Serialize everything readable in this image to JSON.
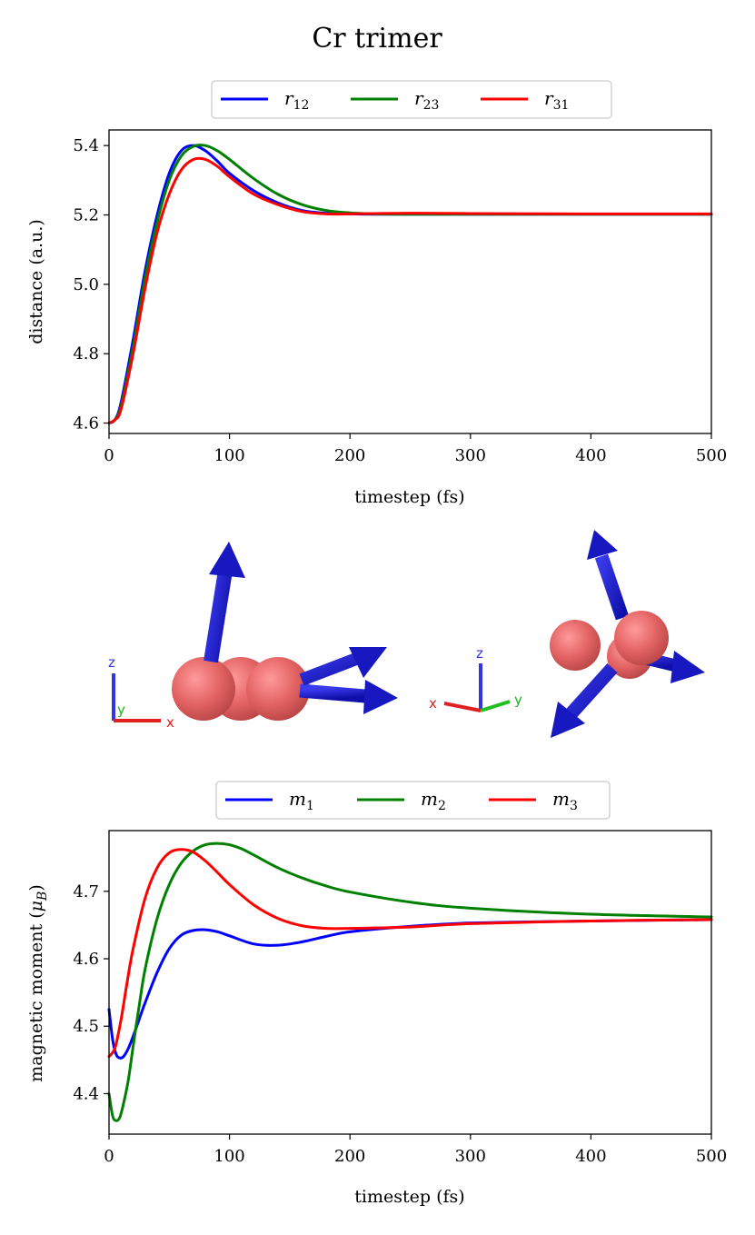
{
  "title": "Cr trimer",
  "colors": {
    "blue": "#0000ff",
    "green": "#008000",
    "red": "#ff0000",
    "atom": "#e46464",
    "arrow": "#1515c8"
  },
  "structure_views": {
    "left_view_axes": [
      "z",
      "y",
      "x"
    ],
    "right_view_axes": [
      "z",
      "x",
      "y"
    ]
  },
  "chart_data": [
    {
      "type": "line",
      "title": "",
      "xlabel": "timestep (fs)",
      "ylabel": "distance (a.u.)",
      "xlim": [
        0,
        500
      ],
      "ylim": [
        4.57,
        5.445
      ],
      "xticks": [
        "0",
        "100",
        "200",
        "300",
        "400",
        "500"
      ],
      "yticks": [
        "4.6",
        "4.8",
        "5.0",
        "5.2",
        "5.4"
      ],
      "legend": "top-center",
      "series": [
        {
          "name": "r",
          "sub": "12",
          "color": "#0000ff",
          "x": [
            0,
            5,
            10,
            20,
            30,
            40,
            50,
            60,
            70,
            80,
            90,
            100,
            120,
            140,
            160,
            180,
            200,
            220,
            250,
            300,
            400,
            500
          ],
          "y": [
            4.6,
            4.61,
            4.66,
            4.84,
            5.04,
            5.2,
            5.32,
            5.385,
            5.4,
            5.385,
            5.355,
            5.32,
            5.27,
            5.235,
            5.213,
            5.205,
            5.203,
            5.202,
            5.202,
            5.202,
            5.202,
            5.202
          ]
        },
        {
          "name": "r",
          "sub": "23",
          "color": "#008000",
          "x": [
            0,
            5,
            10,
            20,
            30,
            40,
            50,
            60,
            70,
            80,
            90,
            100,
            120,
            140,
            160,
            180,
            200,
            220,
            250,
            300,
            400,
            500
          ],
          "y": [
            4.6,
            4.61,
            4.65,
            4.82,
            5.02,
            5.18,
            5.3,
            5.37,
            5.398,
            5.4,
            5.385,
            5.36,
            5.305,
            5.26,
            5.23,
            5.213,
            5.206,
            5.203,
            5.202,
            5.202,
            5.202,
            5.202
          ]
        },
        {
          "name": "r",
          "sub": "31",
          "color": "#ff0000",
          "x": [
            0,
            5,
            10,
            20,
            30,
            40,
            50,
            60,
            70,
            80,
            90,
            100,
            120,
            140,
            160,
            180,
            200,
            220,
            250,
            300,
            400,
            500
          ],
          "y": [
            4.6,
            4.61,
            4.64,
            4.8,
            4.99,
            5.15,
            5.26,
            5.33,
            5.36,
            5.36,
            5.34,
            5.31,
            5.26,
            5.23,
            5.21,
            5.203,
            5.203,
            5.204,
            5.205,
            5.204,
            5.203,
            5.203
          ]
        }
      ]
    },
    {
      "type": "line",
      "title": "",
      "xlabel": "timestep (fs)",
      "ylabel": "magnetic moment",
      "ylabel_unit": "B",
      "xlim": [
        0,
        500
      ],
      "ylim": [
        4.34,
        4.79
      ],
      "xticks": [
        "0",
        "100",
        "200",
        "300",
        "400",
        "500"
      ],
      "yticks": [
        "4.4",
        "4.5",
        "4.6",
        "4.7"
      ],
      "legend": "top-center",
      "series": [
        {
          "name": "m",
          "sub": "1",
          "color": "#0000ff",
          "x": [
            0,
            3,
            6,
            9,
            12,
            16,
            20,
            25,
            30,
            40,
            50,
            60,
            70,
            80,
            90,
            100,
            120,
            140,
            160,
            180,
            200,
            250,
            300,
            400,
            500
          ],
          "y": [
            4.525,
            4.48,
            4.458,
            4.453,
            4.455,
            4.467,
            4.485,
            4.51,
            4.535,
            4.58,
            4.615,
            4.635,
            4.642,
            4.643,
            4.64,
            4.634,
            4.622,
            4.62,
            4.625,
            4.633,
            4.64,
            4.648,
            4.653,
            4.656,
            4.658
          ]
        },
        {
          "name": "m",
          "sub": "2",
          "color": "#008000",
          "x": [
            0,
            3,
            6,
            9,
            12,
            16,
            20,
            25,
            30,
            40,
            50,
            60,
            70,
            80,
            90,
            100,
            110,
            120,
            140,
            160,
            180,
            200,
            250,
            300,
            400,
            500
          ],
          "y": [
            4.4,
            4.367,
            4.36,
            4.365,
            4.385,
            4.42,
            4.47,
            4.53,
            4.585,
            4.66,
            4.71,
            4.742,
            4.76,
            4.769,
            4.771,
            4.769,
            4.763,
            4.754,
            4.735,
            4.72,
            4.708,
            4.699,
            4.684,
            4.675,
            4.666,
            4.662
          ]
        },
        {
          "name": "m",
          "sub": "3",
          "color": "#ff0000",
          "x": [
            0,
            5,
            10,
            15,
            20,
            30,
            40,
            50,
            60,
            70,
            80,
            90,
            100,
            120,
            140,
            160,
            180,
            200,
            250,
            300,
            400,
            500
          ],
          "y": [
            4.455,
            4.468,
            4.51,
            4.565,
            4.615,
            4.69,
            4.735,
            4.757,
            4.762,
            4.758,
            4.745,
            4.728,
            4.71,
            4.68,
            4.66,
            4.649,
            4.645,
            4.645,
            4.647,
            4.652,
            4.656,
            4.658
          ]
        }
      ]
    }
  ]
}
